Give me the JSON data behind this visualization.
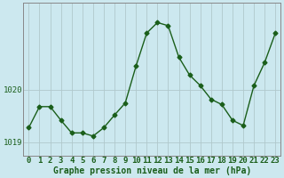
{
  "hours": [
    0,
    1,
    2,
    3,
    4,
    5,
    6,
    7,
    8,
    9,
    10,
    11,
    12,
    13,
    14,
    15,
    16,
    17,
    18,
    19,
    20,
    21,
    22,
    23
  ],
  "pressure": [
    1019.28,
    1019.68,
    1019.68,
    1019.42,
    1019.18,
    1019.18,
    1019.12,
    1019.28,
    1019.52,
    1019.75,
    1020.45,
    1021.08,
    1021.28,
    1021.22,
    1020.62,
    1020.28,
    1020.08,
    1019.82,
    1019.72,
    1019.42,
    1019.32,
    1020.08,
    1020.52,
    1021.08
  ],
  "line_color": "#1a5e1a",
  "marker": "D",
  "markersize": 2.5,
  "linewidth": 1.0,
  "bg_color": "#cce8ef",
  "grid_color": "#b0c8cc",
  "ytick_labels": [
    "1019",
    "1020"
  ],
  "ytick_values": [
    1019,
    1020
  ],
  "ylim": [
    1018.75,
    1021.65
  ],
  "xlim": [
    -0.5,
    23.5
  ],
  "xlabel": "Graphe pression niveau de la mer (hPa)",
  "xlabel_fontsize": 7.0,
  "tick_fontsize": 6.5
}
